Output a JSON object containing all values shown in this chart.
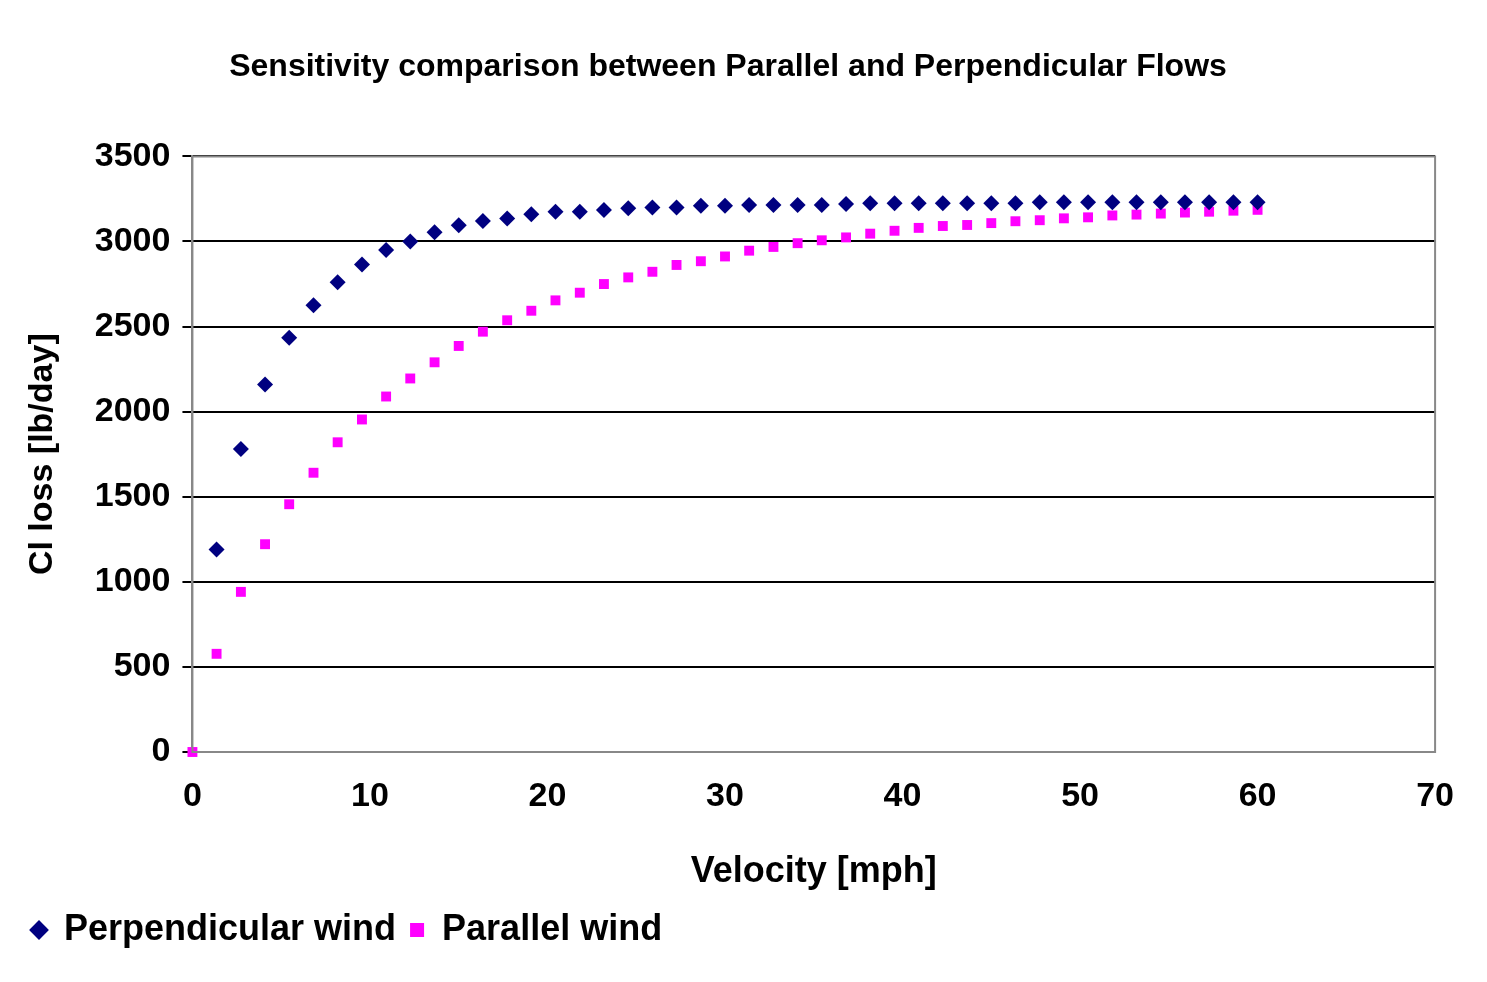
{
  "chart_data": {
    "type": "scatter",
    "title": "Sensitivity comparison between Parallel and Perpendicular Flows",
    "xlabel": "Velocity [mph]",
    "ylabel": "Cl loss [lb/day]",
    "x": [
      0,
      1.36,
      2.73,
      4.09,
      5.45,
      6.82,
      8.18,
      9.55,
      10.91,
      12.27,
      13.64,
      15,
      16.36,
      17.73,
      19.09,
      20.45,
      21.82,
      23.18,
      24.55,
      25.91,
      27.27,
      28.64,
      30,
      31.36,
      32.73,
      34.09,
      35.45,
      36.82,
      38.18,
      39.55,
      40.91,
      42.27,
      43.64,
      45,
      46.36,
      47.73,
      49.09,
      50.45,
      51.82,
      53.18,
      54.55,
      55.91,
      57.27,
      58.64,
      60
    ],
    "series": [
      {
        "name": "Perpendicular wind",
        "color": "#000080",
        "marker": "diamond",
        "values": [
          null,
          1190,
          1780,
          2160,
          2435,
          2625,
          2760,
          2865,
          2950,
          3000,
          3055,
          3095,
          3120,
          3135,
          3160,
          3175,
          3175,
          3185,
          3195,
          3200,
          3200,
          3210,
          3210,
          3215,
          3215,
          3215,
          3215,
          3220,
          3225,
          3225,
          3225,
          3225,
          3225,
          3225,
          3225,
          3230,
          3230,
          3230,
          3230,
          3230,
          3230,
          3230,
          3230,
          3230,
          3230
        ]
      },
      {
        "name": "Parallel wind",
        "color": "#ff00ff",
        "marker": "square",
        "values": [
          0,
          577,
          941,
          1221,
          1456,
          1641,
          1820,
          1954,
          2089,
          2195,
          2290,
          2386,
          2470,
          2537,
          2593,
          2654,
          2699,
          2750,
          2789,
          2822,
          2862,
          2884,
          2912,
          2946,
          2968,
          2990,
          3007,
          3024,
          3046,
          3063,
          3080,
          3091,
          3097,
          3108,
          3119,
          3125,
          3136,
          3142,
          3153,
          3158,
          3164,
          3170,
          3175,
          3181,
          3186
        ]
      }
    ],
    "xlim": [
      0,
      70
    ],
    "xticks": [
      0,
      10,
      20,
      30,
      40,
      50,
      60,
      70
    ],
    "ylim": [
      0,
      3500
    ],
    "yticks": [
      0,
      500,
      1000,
      1500,
      2000,
      2500,
      3000,
      3500
    ],
    "grid": "y",
    "legend": "bottom left"
  }
}
